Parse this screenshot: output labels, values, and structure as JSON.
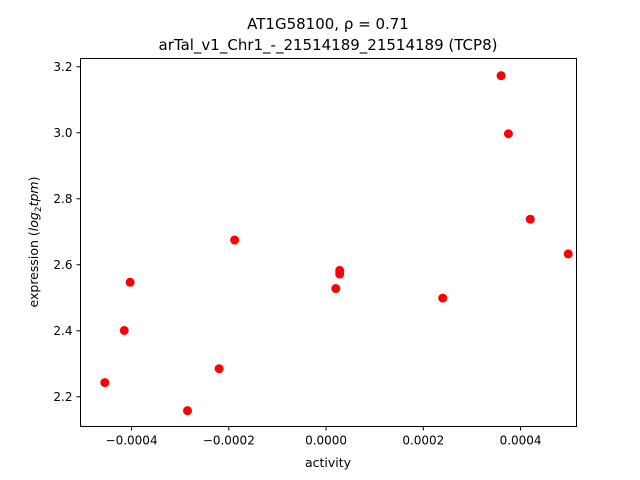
{
  "chart_data": {
    "type": "scatter",
    "title_line1": "AT1G58100, ρ = 0.71",
    "title_line2": "arTal_v1_Chr1_-_21514189_21514189 (TCP8)",
    "xlabel": "activity",
    "ylabel_prefix": "expression (",
    "ylabel_math": "log",
    "ylabel_sub": "2",
    "ylabel_math2": "tpm",
    "ylabel_suffix": ")",
    "xlim": [
      -0.000505,
      0.000515
    ],
    "ylim": [
      2.11,
      3.225
    ],
    "xticks": [
      -0.0004,
      -0.0002,
      0.0,
      0.0002,
      0.0004
    ],
    "xtick_labels": [
      "−0.0004",
      "−0.0002",
      "0.0000",
      "0.0002",
      "0.0004"
    ],
    "yticks": [
      2.2,
      2.4,
      2.6,
      2.8,
      3.0,
      3.2
    ],
    "ytick_labels": [
      "2.2",
      "2.4",
      "2.6",
      "2.8",
      "3.0",
      "3.2"
    ],
    "marker_color": "#ff0000",
    "grid": false,
    "points": [
      {
        "x": -0.000455,
        "y": 2.243
      },
      {
        "x": -0.000415,
        "y": 2.401
      },
      {
        "x": -0.000403,
        "y": 2.547
      },
      {
        "x": -0.000285,
        "y": 2.158
      },
      {
        "x": -0.00022,
        "y": 2.285
      },
      {
        "x": -0.000188,
        "y": 2.675
      },
      {
        "x": 2e-05,
        "y": 2.528
      },
      {
        "x": 2.8e-05,
        "y": 2.583
      },
      {
        "x": 2.8e-05,
        "y": 2.572
      },
      {
        "x": 0.00024,
        "y": 2.499
      },
      {
        "x": 0.00036,
        "y": 3.173
      },
      {
        "x": 0.000375,
        "y": 2.997
      },
      {
        "x": 0.00042,
        "y": 2.738
      },
      {
        "x": 0.000498,
        "y": 2.633
      }
    ]
  }
}
